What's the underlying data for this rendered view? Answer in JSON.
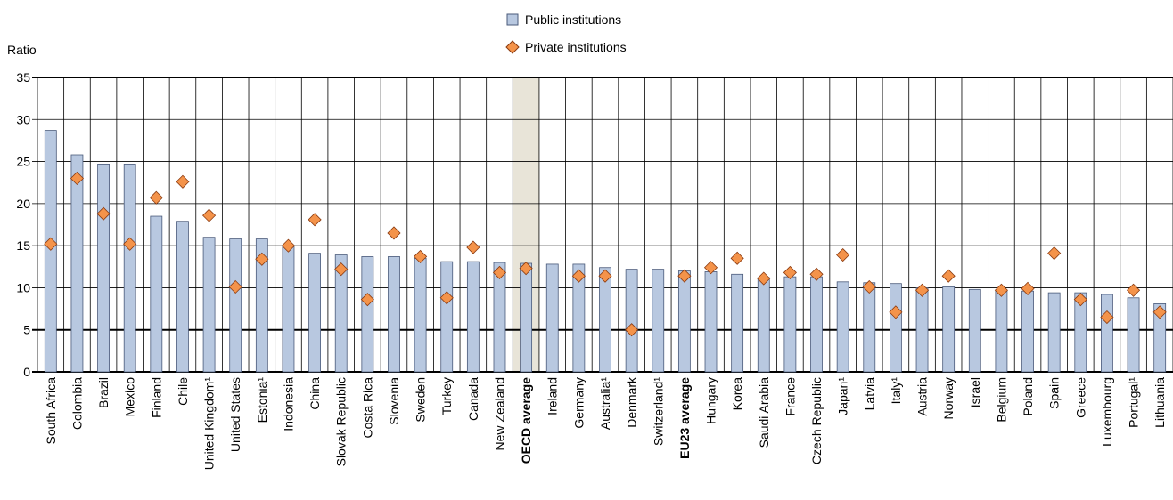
{
  "chart_data": {
    "type": "bar",
    "y_label": "Ratio",
    "categories": [
      "South Africa",
      "Colombia",
      "Brazil",
      "Mexico",
      "Finland",
      "Chile",
      "United Kingdom¹",
      "United States",
      "Estonia¹",
      "Indonesia",
      "China",
      "Slovak Republic",
      "Costa Rica",
      "Slovenia",
      "Sweden",
      "Turkey",
      "Canada",
      "New Zealand",
      "OECD average",
      "Ireland",
      "Germany",
      "Australia¹",
      "Denmark",
      "Switzerland¹",
      "EU23 average",
      "Hungary",
      "Korea",
      "Saudi Arabia",
      "France",
      "Czech Republic",
      "Japan¹",
      "Latvia",
      "Italy¹",
      "Austria",
      "Norway",
      "Israel",
      "Belgium",
      "Poland",
      "Spain",
      "Greece",
      "Luxembourg",
      "Portugal¹",
      "Lithuania"
    ],
    "series": [
      {
        "name": "Public institutions",
        "color": "#b8c8e0",
        "mark": "bar",
        "values": [
          28.7,
          25.8,
          24.7,
          24.7,
          18.5,
          17.9,
          16.0,
          15.8,
          15.8,
          15.0,
          14.1,
          13.9,
          13.7,
          13.7,
          13.5,
          13.1,
          13.1,
          13.0,
          12.9,
          12.8,
          12.8,
          12.4,
          12.2,
          12.2,
          12.0,
          11.9,
          11.6,
          11.2,
          11.3,
          11.3,
          10.7,
          10.6,
          10.5,
          10.0,
          10.1,
          9.8,
          9.7,
          9.6,
          9.4,
          9.4,
          9.2,
          8.8,
          8.1
        ]
      },
      {
        "name": "Private institutions",
        "color": "#f4934a",
        "mark": "diamond",
        "values": [
          15.2,
          23.0,
          18.8,
          15.2,
          20.7,
          22.6,
          18.6,
          10.1,
          13.4,
          15.0,
          18.1,
          12.2,
          8.6,
          16.5,
          13.7,
          8.8,
          14.8,
          11.8,
          12.3,
          null,
          11.4,
          11.4,
          5.0,
          null,
          11.4,
          12.4,
          13.5,
          11.1,
          11.8,
          11.6,
          13.9,
          10.1,
          7.1,
          9.7,
          11.4,
          null,
          9.7,
          9.9,
          14.1,
          8.6,
          6.5,
          9.7,
          7.1
        ]
      }
    ],
    "ylim": [
      0,
      35
    ],
    "yticks": [
      0,
      5,
      10,
      15,
      20,
      25,
      30,
      35
    ],
    "grid": true,
    "bold_categories": [
      18,
      24
    ],
    "shaded_categories": [
      18
    ]
  }
}
